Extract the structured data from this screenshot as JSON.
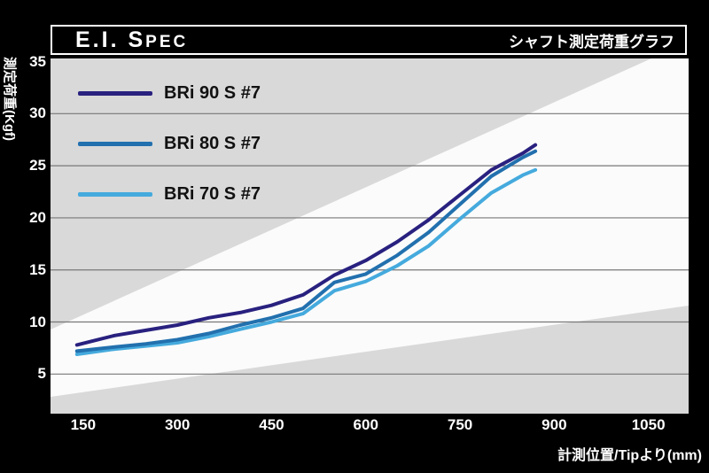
{
  "header": {
    "title_main": "E.I. S",
    "title_small": "PEC",
    "title_right": "シャフト測定荷重グラフ"
  },
  "colors": {
    "background": "#000000",
    "plot_bg": "#d9d9d9",
    "plot_highlight": "#fbfbfb",
    "gridline": "#787878",
    "axis_text": "#ffffff",
    "legend_text": "#111111"
  },
  "chart_data": {
    "type": "line",
    "title": "E.I. Spec",
    "subtitle": "シャフト測定荷重グラフ",
    "xlabel": "計測位置/Tipより(mm)",
    "ylabel": "測定荷重(Kgf)",
    "xlim": [
      98,
      1114
    ],
    "ylim": [
      1.2,
      35.3
    ],
    "x_ticks": [
      150,
      300,
      450,
      600,
      750,
      900,
      1050
    ],
    "y_ticks": [
      35,
      30,
      25,
      20,
      15,
      10,
      5
    ],
    "grid_ticks": [
      30,
      25,
      20,
      15,
      10,
      5
    ],
    "grid": "horizontal-only",
    "legend_position": "upper-left",
    "x": [
      140,
      200,
      250,
      300,
      350,
      400,
      450,
      500,
      550,
      600,
      650,
      700,
      750,
      800,
      850,
      870
    ],
    "series": [
      {
        "name": "BRi 90 S #7",
        "color": "#29217f",
        "values": [
          7.8,
          8.7,
          9.2,
          9.7,
          10.4,
          10.9,
          11.6,
          12.6,
          14.5,
          15.9,
          17.7,
          19.8,
          22.2,
          24.6,
          26.2,
          27.0
        ]
      },
      {
        "name": "BRi 80 S #7",
        "color": "#2270ae",
        "values": [
          7.2,
          7.6,
          7.9,
          8.3,
          8.9,
          9.7,
          10.4,
          11.3,
          13.8,
          14.6,
          16.4,
          18.6,
          21.3,
          24.0,
          25.8,
          26.4
        ]
      },
      {
        "name": "BRi 70 S #7",
        "color": "#45aadd",
        "values": [
          6.9,
          7.4,
          7.7,
          8.0,
          8.6,
          9.3,
          10.0,
          10.8,
          13.0,
          13.9,
          15.4,
          17.3,
          19.9,
          22.4,
          24.1,
          24.6
        ]
      }
    ]
  }
}
